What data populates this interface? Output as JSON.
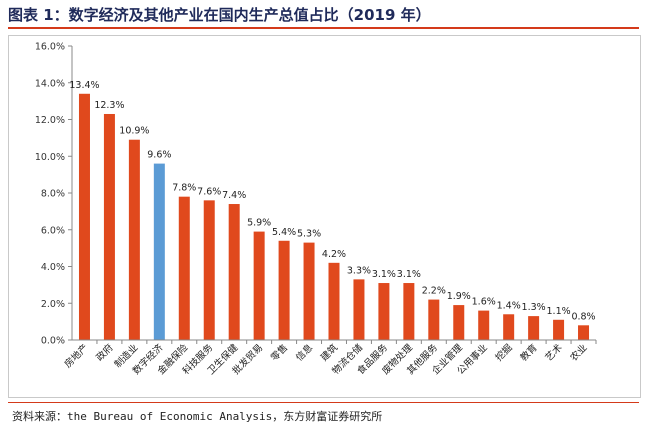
{
  "title": "图表 1：数字经济及其他产业在国内生产总值占比（2019 年）",
  "source": "资料来源：the Bureau of Economic Analysis，东方财富证券研究所",
  "colors": {
    "default_bar": "#e0491d",
    "highlight_bar": "#5b9bd5",
    "axis": "#888888"
  },
  "chart_data": {
    "type": "bar",
    "title": "",
    "xlabel": "",
    "ylabel": "",
    "ylim": [
      0,
      16
    ],
    "yticks": [
      "0.0%",
      "2.0%",
      "4.0%",
      "6.0%",
      "8.0%",
      "10.0%",
      "12.0%",
      "14.0%",
      "16.0%"
    ],
    "grid": false,
    "legend": "none",
    "categories": [
      "房地产",
      "政府",
      "制造业",
      "数字经济",
      "金融保险",
      "科技服务",
      "卫生保健",
      "批发贸易",
      "零售",
      "信息",
      "建筑",
      "物流仓储",
      "食品服务",
      "废物处理",
      "其他服务",
      "企业管理",
      "公用事业",
      "挖掘",
      "教育",
      "艺术",
      "农业"
    ],
    "values": [
      13.4,
      12.3,
      10.9,
      9.6,
      7.8,
      7.6,
      7.4,
      5.9,
      5.4,
      5.3,
      4.2,
      3.3,
      3.1,
      3.1,
      2.2,
      1.9,
      1.6,
      1.4,
      1.3,
      1.1,
      0.8
    ],
    "labels": [
      "13.4%",
      "12.3%",
      "10.9%",
      "9.6%",
      "7.8%",
      "7.6%",
      "7.4%",
      "5.9%",
      "5.4%",
      "5.3%",
      "4.2%",
      "3.3%",
      "3.1%",
      "3.1%",
      "2.2%",
      "1.9%",
      "1.6%",
      "1.4%",
      "1.3%",
      "1.1%",
      "0.8%"
    ],
    "highlight_index": 3
  }
}
